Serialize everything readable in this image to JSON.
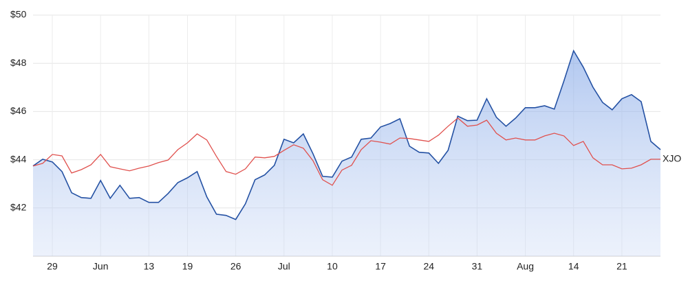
{
  "chart_data": {
    "type": "line",
    "categories": [
      null,
      null,
      "29",
      null,
      null,
      null,
      null,
      "Jun",
      null,
      null,
      null,
      null,
      "13",
      null,
      null,
      null,
      "19",
      null,
      null,
      null,
      null,
      "26",
      null,
      null,
      null,
      null,
      "Jul",
      null,
      null,
      null,
      null,
      "10",
      null,
      null,
      null,
      null,
      "17",
      null,
      null,
      null,
      null,
      "24",
      null,
      null,
      null,
      null,
      "31",
      null,
      null,
      null,
      null,
      "Aug",
      null,
      null,
      null,
      null,
      "14",
      null,
      null,
      null,
      null,
      "21",
      null,
      null,
      null,
      null
    ],
    "series": [
      {
        "color": "#2451a3",
        "area": true,
        "values": [
          43.74,
          44.02,
          43.91,
          43.51,
          42.63,
          42.43,
          42.4,
          43.14,
          42.4,
          42.94,
          42.4,
          42.43,
          42.23,
          42.23,
          42.6,
          43.05,
          43.25,
          43.51,
          42.46,
          41.74,
          41.69,
          41.52,
          42.17,
          43.17,
          43.37,
          43.77,
          44.85,
          44.7,
          45.07,
          44.25,
          43.31,
          43.28,
          43.94,
          44.11,
          44.85,
          44.9,
          45.36,
          45.5,
          45.7,
          44.56,
          44.31,
          44.28,
          43.85,
          44.39,
          45.81,
          45.62,
          45.64,
          46.53,
          45.76,
          45.39,
          45.73,
          46.16,
          46.16,
          46.24,
          46.1,
          47.27,
          48.52,
          47.84,
          47.01,
          46.38,
          46.07,
          46.53,
          46.7,
          46.41,
          44.76,
          44.42
        ]
      },
      {
        "name": "XJO",
        "color": "#e0504d",
        "values": [
          43.74,
          43.85,
          44.22,
          44.16,
          43.45,
          43.59,
          43.79,
          44.22,
          43.71,
          43.62,
          43.54,
          43.65,
          43.74,
          43.88,
          43.99,
          44.42,
          44.7,
          45.07,
          44.82,
          44.14,
          43.51,
          43.4,
          43.62,
          44.11,
          44.08,
          44.14,
          44.39,
          44.62,
          44.48,
          43.96,
          43.17,
          42.94,
          43.57,
          43.77,
          44.42,
          44.79,
          44.73,
          44.65,
          44.9,
          44.88,
          44.82,
          44.76,
          45.02,
          45.39,
          45.73,
          45.39,
          45.44,
          45.64,
          45.1,
          44.82,
          44.9,
          44.82,
          44.82,
          44.99,
          45.1,
          44.99,
          44.59,
          44.76,
          44.08,
          43.79,
          43.79,
          43.62,
          43.65,
          43.79,
          44.02,
          44.02
        ]
      }
    ],
    "ylim": [
      40,
      50
    ],
    "yticks": [
      {
        "value": 42,
        "label": "$42"
      },
      {
        "value": 44,
        "label": "$44"
      },
      {
        "value": 46,
        "label": "$46"
      },
      {
        "value": 48,
        "label": "$48"
      },
      {
        "value": 50,
        "label": "$50"
      }
    ],
    "grid": true
  }
}
